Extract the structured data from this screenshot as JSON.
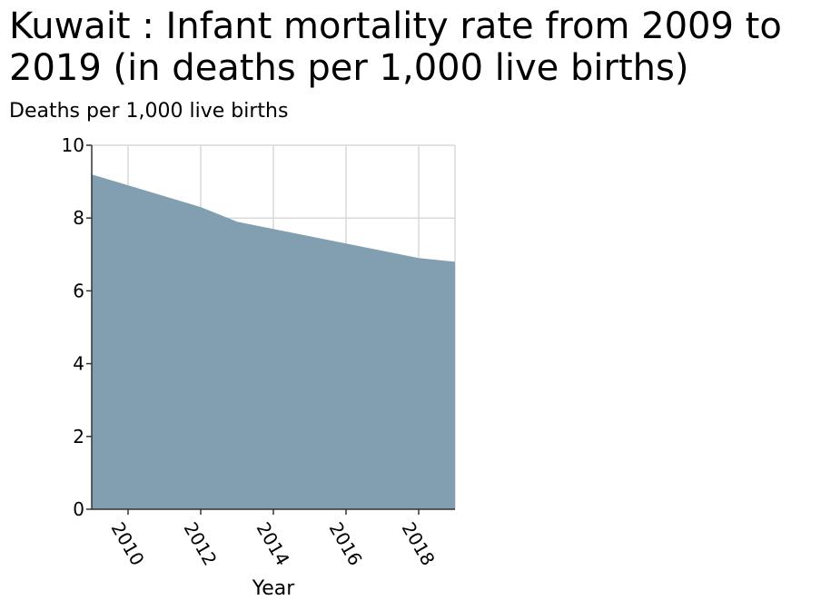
{
  "chart_data": {
    "type": "area",
    "title": "Kuwait : Infant mortality rate from 2009 to 2019 (in deaths per 1,000 live births)",
    "xlabel": "Year",
    "ylabel": "Deaths per 1,000 live births",
    "x": [
      2009,
      2010,
      2011,
      2012,
      2013,
      2014,
      2015,
      2016,
      2017,
      2018,
      2019
    ],
    "series": [
      {
        "values": [
          9.2,
          8.9,
          8.6,
          8.3,
          7.9,
          7.7,
          7.5,
          7.3,
          7.1,
          6.9,
          6.8
        ]
      }
    ],
    "xlim": [
      2009,
      2019
    ],
    "ylim": [
      0,
      10
    ],
    "xticks": [
      "2010",
      "2012",
      "2014",
      "2016",
      "2018"
    ],
    "yticks": [
      "0",
      "2",
      "4",
      "6",
      "8",
      "10"
    ],
    "grid": true,
    "fill_color": "#829fb1",
    "grid_color": "#d9d9d9"
  }
}
